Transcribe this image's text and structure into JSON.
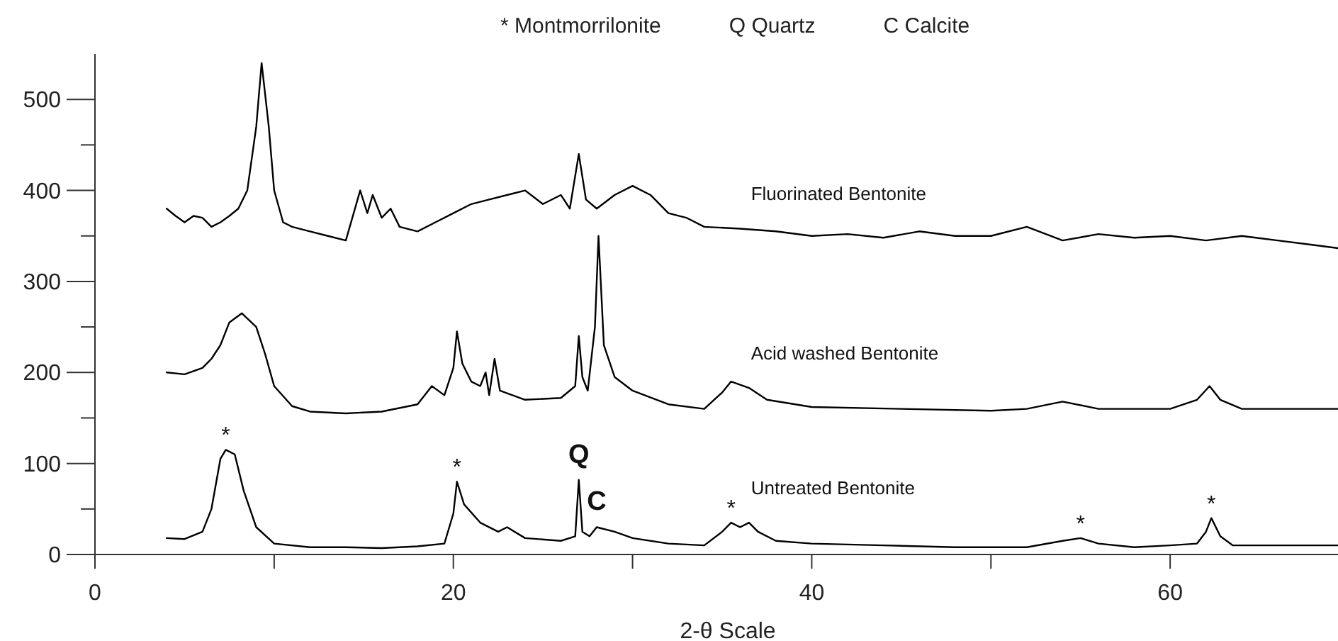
{
  "chart_data": {
    "type": "line",
    "xlabel": "2-θ Scale",
    "xlim": [
      0,
      70
    ],
    "xticks": [
      0,
      {
        "value": 10,
        "label": null
      },
      20,
      {
        "value": 30,
        "label": null
      },
      40,
      {
        "value": 50,
        "label": null
      },
      60
    ],
    "ylim": [
      0,
      550
    ],
    "yticks": [
      0,
      {
        "value": 50,
        "label": null
      },
      100,
      {
        "value": 150,
        "label": null
      },
      200,
      {
        "value": 250,
        "label": null
      },
      300,
      {
        "value": 350,
        "label": null
      },
      400,
      {
        "value": 450,
        "label": null
      },
      500
    ],
    "marker": "none",
    "line_style": "solid",
    "series": [
      {
        "name": "Fluorinated Bentonite",
        "color": "#000000",
        "x": [
          4,
          4.5,
          5,
          5.5,
          6,
          6.5,
          7,
          7.5,
          8,
          8.5,
          9,
          9.3,
          9.7,
          10,
          10.5,
          11,
          12,
          13,
          14,
          14.8,
          15.2,
          15.5,
          16,
          16.5,
          17,
          18,
          19,
          20,
          21,
          22,
          23,
          24,
          25,
          26,
          26.5,
          27,
          27.4,
          28,
          29,
          30,
          31,
          32,
          33,
          34,
          36,
          38,
          40,
          42,
          44,
          46,
          48,
          50,
          52,
          54,
          56,
          58,
          60,
          62,
          64,
          66,
          68,
          70
        ],
        "values": [
          380,
          372,
          365,
          372,
          370,
          360,
          365,
          372,
          380,
          400,
          470,
          540,
          470,
          400,
          365,
          360,
          355,
          350,
          345,
          400,
          375,
          395,
          370,
          380,
          360,
          355,
          365,
          375,
          385,
          390,
          395,
          400,
          385,
          395,
          380,
          440,
          390,
          380,
          395,
          405,
          395,
          375,
          370,
          360,
          358,
          355,
          350,
          352,
          348,
          355,
          350,
          350,
          360,
          345,
          352,
          348,
          350,
          345,
          350,
          345,
          340,
          335
        ]
      },
      {
        "name": "Acid washed Bentonite",
        "color": "#000000",
        "x": [
          4,
          5,
          6,
          6.5,
          7,
          7.5,
          8.2,
          9,
          9.5,
          10,
          11,
          12,
          14,
          16,
          18,
          18.8,
          19.5,
          20,
          20.2,
          20.5,
          21,
          21.5,
          21.8,
          22,
          22.3,
          22.6,
          24,
          26,
          26.8,
          27,
          27.2,
          27.5,
          27.9,
          28.1,
          28.4,
          29,
          30,
          32,
          34,
          35,
          35.5,
          36.5,
          37.5,
          40,
          45,
          50,
          52,
          54,
          56,
          60,
          61.5,
          62.2,
          62.8,
          64,
          70
        ],
        "values": [
          200,
          198,
          205,
          215,
          230,
          255,
          265,
          250,
          220,
          185,
          163,
          157,
          155,
          157,
          165,
          185,
          175,
          205,
          245,
          210,
          190,
          185,
          200,
          175,
          215,
          180,
          170,
          172,
          185,
          240,
          195,
          180,
          250,
          350,
          230,
          195,
          180,
          165,
          160,
          178,
          190,
          183,
          170,
          162,
          160,
          158,
          160,
          168,
          160,
          160,
          170,
          185,
          170,
          160,
          160
        ]
      },
      {
        "name": "Untreated Bentonite",
        "color": "#000000",
        "x": [
          4,
          5,
          6,
          6.5,
          7,
          7.3,
          7.8,
          8.3,
          9,
          10,
          12,
          14,
          16,
          18,
          19.5,
          20,
          20.2,
          20.6,
          21.5,
          22.5,
          23,
          24,
          26,
          26.8,
          27,
          27.2,
          27.6,
          28,
          29,
          30,
          32,
          34,
          35,
          35.5,
          36,
          36.5,
          37,
          38,
          40,
          44,
          48,
          52,
          54,
          55,
          56,
          58,
          60,
          61.5,
          62,
          62.3,
          62.8,
          63.5,
          66,
          70
        ],
        "values": [
          18,
          17,
          25,
          50,
          105,
          115,
          110,
          70,
          30,
          12,
          8,
          8,
          7,
          9,
          12,
          45,
          80,
          55,
          35,
          25,
          30,
          18,
          15,
          20,
          82,
          25,
          20,
          30,
          25,
          18,
          12,
          10,
          25,
          35,
          30,
          35,
          25,
          15,
          12,
          10,
          8,
          8,
          15,
          18,
          12,
          8,
          10,
          12,
          25,
          40,
          20,
          10,
          10,
          10
        ]
      }
    ],
    "annotations": [
      "* Montmorrilonite",
      "Q Quartz",
      "C Calcite",
      {
        "text": "*",
        "x": 7.3,
        "y": 115
      },
      {
        "text": "*",
        "x": 20.2,
        "y": 80
      },
      {
        "text": "Q",
        "x": 27,
        "y": 82
      },
      {
        "text": "C",
        "x": 28,
        "y": 30
      },
      {
        "text": "*",
        "x": 35.5,
        "y": 35
      },
      {
        "text": "*",
        "x": 55,
        "y": 18
      },
      {
        "text": "*",
        "x": 62.3,
        "y": 40
      }
    ]
  }
}
